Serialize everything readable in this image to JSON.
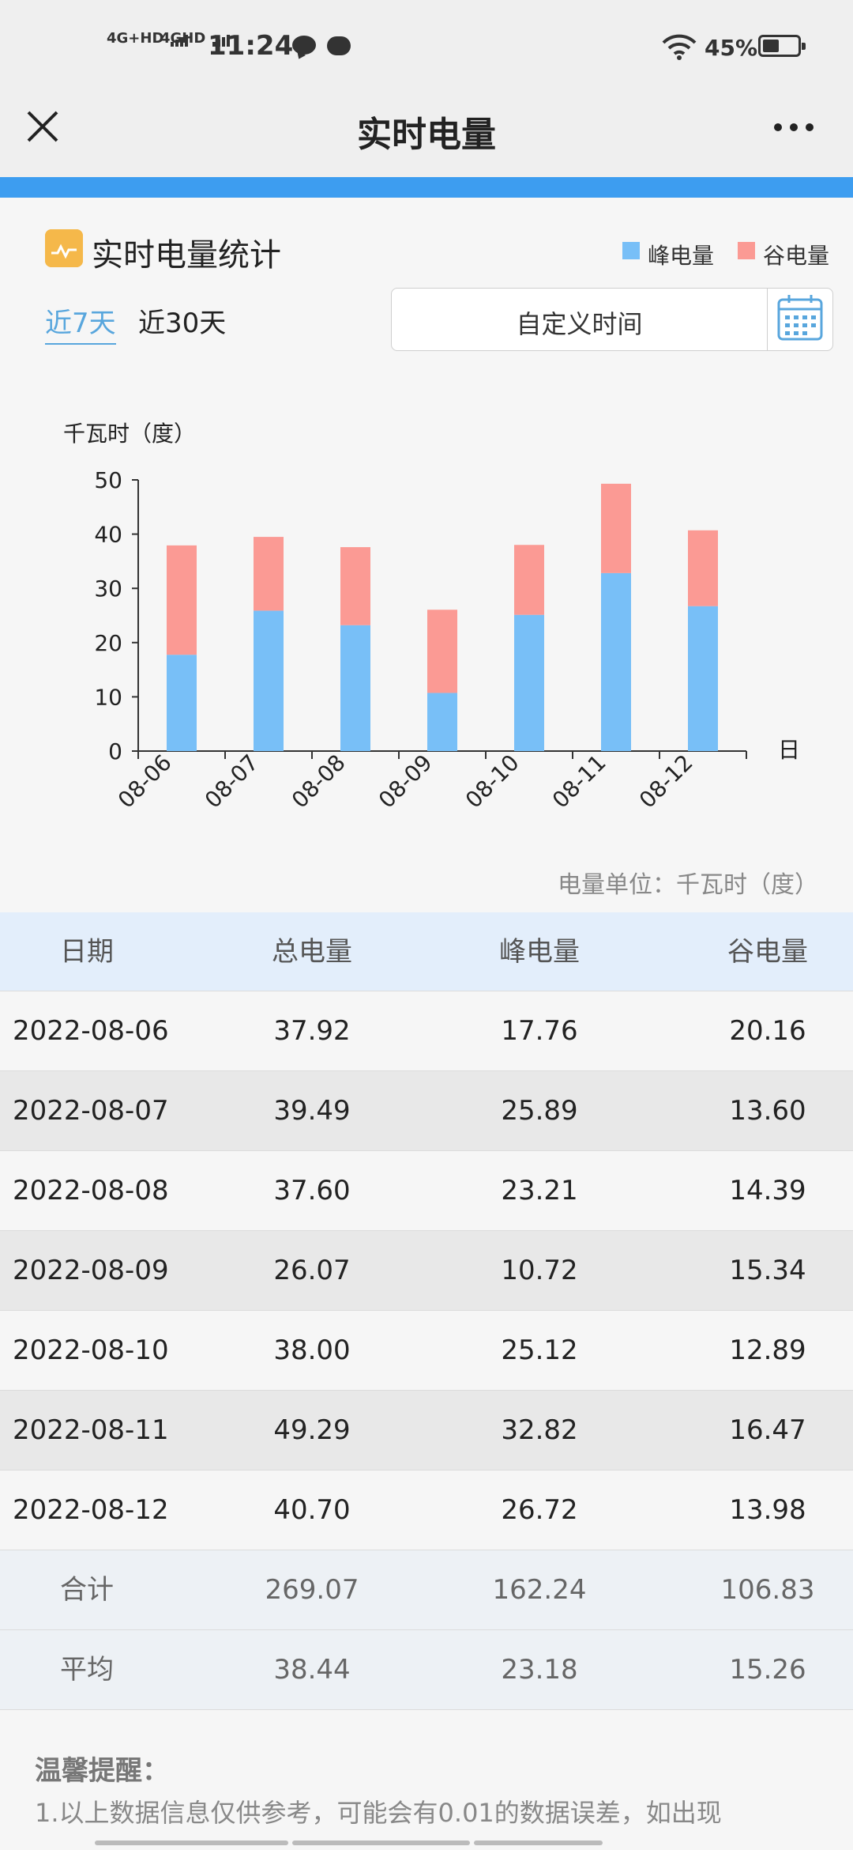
{
  "status_bar": {
    "signal_1": "4G+HD",
    "signal_2": "4GHD",
    "time": "11:24",
    "battery": "45%"
  },
  "nav": {
    "title": "实时电量"
  },
  "header": {
    "title": "实时电量统计",
    "legend": [
      {
        "label": "峰电量",
        "color": "#78bff7"
      },
      {
        "label": "谷电量",
        "color": "#fb9a94"
      }
    ],
    "tabs": [
      {
        "label": "近7天",
        "active": true
      },
      {
        "label": "近30天",
        "active": false
      }
    ],
    "custom_time_label": "自定义时间"
  },
  "chart_data": {
    "type": "bar",
    "stacked": true,
    "ylabel": "千瓦时（度）",
    "xlabel": "日",
    "ylim": [
      0,
      50
    ],
    "yticks": [
      0,
      10,
      20,
      30,
      40,
      50
    ],
    "categories": [
      "08-06",
      "08-07",
      "08-08",
      "08-09",
      "08-10",
      "08-11",
      "08-12"
    ],
    "series": [
      {
        "name": "峰电量",
        "color": "#78bff7",
        "values": [
          17.76,
          25.89,
          23.21,
          10.72,
          25.12,
          32.82,
          26.72
        ]
      },
      {
        "name": "谷电量",
        "color": "#fb9a94",
        "values": [
          20.16,
          13.6,
          14.39,
          15.34,
          12.89,
          16.47,
          13.98
        ]
      }
    ]
  },
  "unit_note": "电量单位：千瓦时（度）",
  "table": {
    "headers": [
      "日期",
      "总电量",
      "峰电量",
      "谷电量"
    ],
    "rows": [
      [
        "2022-08-06",
        "37.92",
        "17.76",
        "20.16"
      ],
      [
        "2022-08-07",
        "39.49",
        "25.89",
        "13.60"
      ],
      [
        "2022-08-08",
        "37.60",
        "23.21",
        "14.39"
      ],
      [
        "2022-08-09",
        "26.07",
        "10.72",
        "15.34"
      ],
      [
        "2022-08-10",
        "38.00",
        "25.12",
        "12.89"
      ],
      [
        "2022-08-11",
        "49.29",
        "32.82",
        "16.47"
      ],
      [
        "2022-08-12",
        "40.70",
        "26.72",
        "13.98"
      ]
    ],
    "summary": [
      [
        "合计",
        "269.07",
        "162.24",
        "106.83"
      ],
      [
        "平均",
        "38.44",
        "23.18",
        "15.26"
      ]
    ]
  },
  "notice": {
    "title": "温馨提醒：",
    "text": "1.以上数据信息仅供参考，可能会有0.01的数据误差，如出现"
  }
}
